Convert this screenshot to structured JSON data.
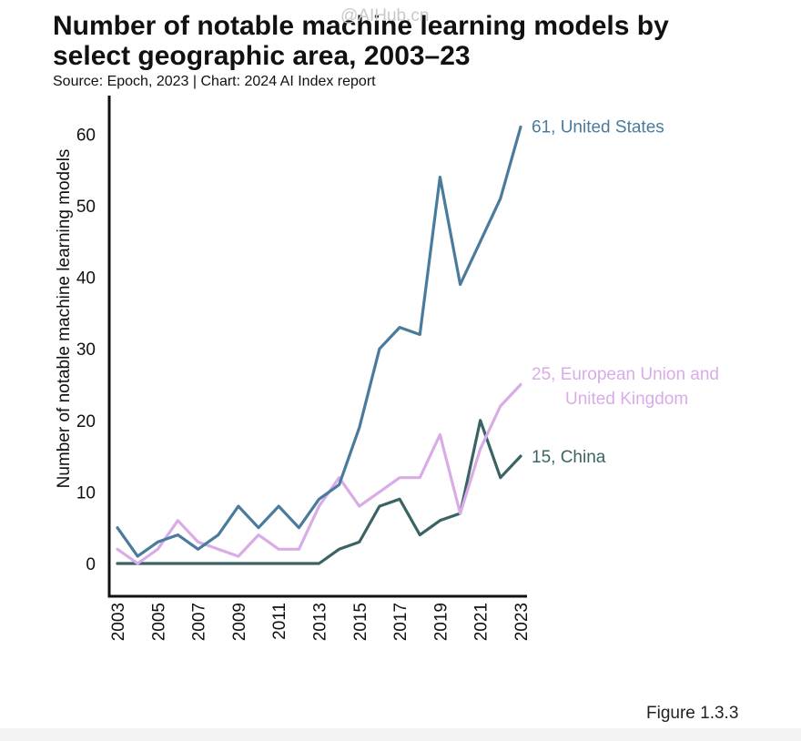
{
  "header": {
    "title": "Number of notable machine learning models by select geographic area, 2003–23",
    "subtitle": "Source: Epoch, 2023 | Chart: 2024 AI Index report",
    "watermark": "@AIHub.cn"
  },
  "footer": {
    "figure_label": "Figure 1.3.3"
  },
  "chart_data": {
    "type": "line",
    "title": "Number of notable machine learning models by select geographic area, 2003–23",
    "xlabel": "",
    "ylabel": "Number of notable machine learning models",
    "x": [
      2003,
      2004,
      2005,
      2006,
      2007,
      2008,
      2009,
      2010,
      2011,
      2012,
      2013,
      2014,
      2015,
      2016,
      2017,
      2018,
      2019,
      2020,
      2021,
      2022,
      2023
    ],
    "x_tick_labels": [
      "2003",
      "2005",
      "2007",
      "2009",
      "2011",
      "2013",
      "2015",
      "2017",
      "2019",
      "2021",
      "2023"
    ],
    "y_ticks": [
      0,
      10,
      20,
      30,
      40,
      50,
      60
    ],
    "ylim": [
      -4,
      65
    ],
    "xlim": [
      2003,
      2023
    ],
    "grid": false,
    "series": [
      {
        "name": "United States",
        "end_label": "61, United States",
        "color": "#4a7b9d",
        "values": [
          5,
          1,
          3,
          4,
          2,
          4,
          8,
          5,
          8,
          5,
          9,
          11,
          19,
          30,
          33,
          32,
          54,
          39,
          45,
          51,
          61
        ]
      },
      {
        "name": "European Union and United Kingdom",
        "end_label_lines": [
          "25, European Union and",
          "United Kingdom"
        ],
        "color": "#d9ace8",
        "values": [
          2,
          0,
          2,
          6,
          3,
          2,
          1,
          4,
          2,
          2,
          8,
          12,
          8,
          10,
          12,
          12,
          18,
          7,
          16,
          22,
          25
        ]
      },
      {
        "name": "China",
        "end_label": "15, China",
        "color": "#3a6464",
        "values": [
          0,
          0,
          0,
          0,
          0,
          0,
          0,
          0,
          0,
          0,
          0,
          2,
          3,
          8,
          9,
          4,
          6,
          7,
          20,
          12,
          15
        ]
      }
    ]
  }
}
